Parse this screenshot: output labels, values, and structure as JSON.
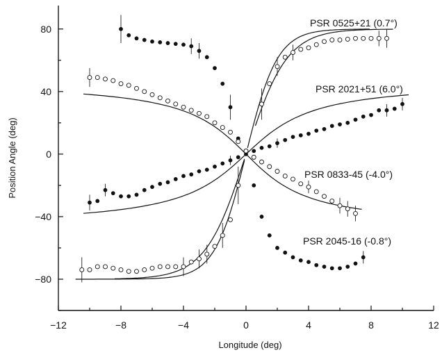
{
  "chart_data": {
    "type": "scatter",
    "xlabel": "Longitude (deg)",
    "ylabel": "Position Angle (deg)",
    "xlim": [
      -12,
      12
    ],
    "ylim": [
      -100,
      95
    ],
    "xticks": [
      -12,
      -8,
      -4,
      0,
      4,
      8,
      12
    ],
    "yticks": [
      -80,
      -40,
      0,
      40,
      80
    ],
    "grid": false,
    "series": [
      {
        "name": "PSR 0525+21 (0.7°)",
        "curve": "rvm",
        "params": {
          "a": 2.6,
          "amp": 80
        },
        "marker": "filled",
        "x": [
          -8,
          -7.5,
          -7,
          -6.5,
          -6,
          -5.5,
          -5,
          -4.5,
          -4,
          -3.5,
          -3,
          -2.5,
          -2,
          -1.5,
          -1,
          -0.5
        ],
        "y": [
          80,
          76,
          74,
          73,
          72,
          71.5,
          71,
          70.5,
          70,
          69,
          66,
          62,
          55,
          45,
          30,
          10
        ],
        "err_x": [
          -8,
          -3.5,
          -3,
          -1
        ],
        "err_h": [
          9,
          5,
          5,
          8
        ]
      },
      {
        "name": "",
        "curve": "rvm",
        "params": {
          "a": 2.6,
          "amp": 80
        },
        "marker": "open",
        "x": [
          1,
          1.5,
          2,
          2.5,
          3,
          3.5,
          4,
          4.5,
          5,
          5.5,
          6,
          6.5,
          7,
          7.5,
          8,
          8.5,
          9
        ],
        "y": [
          32,
          45,
          56,
          62,
          65,
          67,
          68,
          70,
          72,
          73,
          73,
          73.5,
          74,
          74,
          74,
          74,
          74
        ],
        "err_x": [
          1,
          2,
          3,
          8.5,
          9
        ],
        "err_h": [
          10,
          6,
          5,
          5,
          6
        ]
      },
      {
        "name": "PSR 2021+51 (6.0°)",
        "curve": "atan",
        "params": {
          "k": 3.2
        },
        "marker": "filled",
        "x": [
          -10,
          -9.5,
          -9,
          -8.5,
          -8,
          -7.5,
          -7,
          -6.5,
          -6,
          -5.5,
          -5,
          -4.5,
          -4,
          -3.5,
          -3,
          -2.5,
          -2,
          -1.5,
          -1,
          -0.5,
          0,
          0.5,
          1,
          1.5,
          2,
          2.5,
          3,
          3.5,
          4,
          4.5,
          5,
          5.5,
          6,
          6.5,
          7,
          7.5,
          8,
          8.5,
          9,
          9.5,
          10
        ],
        "y": [
          -31,
          -30,
          -23,
          -25,
          -27,
          -27,
          -26,
          -23,
          -21,
          -19,
          -18,
          -16,
          -14,
          -13,
          -11,
          -10,
          -8,
          -6,
          -4,
          -2,
          0,
          2,
          4,
          5,
          7,
          9,
          11,
          12,
          13,
          15,
          16,
          18,
          19,
          20,
          22,
          24,
          25,
          28,
          28,
          29,
          32
        ],
        "err_x": [
          -10,
          -9,
          -1,
          2,
          9,
          10
        ],
        "err_h": [
          5,
          4,
          3,
          3,
          4,
          4
        ]
      },
      {
        "name": "PSR 0833-45 (-4.0°)",
        "curve": "atan",
        "params": {
          "k": -3.0
        },
        "marker": "open",
        "x": [
          -10,
          -9.5,
          -9,
          -8.5,
          -8,
          -7.5,
          -7,
          -6.5,
          -6,
          -5.5,
          -5,
          -4.5,
          -4,
          -3.5,
          -3,
          -2.5,
          -2,
          -1.5,
          -1,
          -0.5,
          0,
          0.5,
          1,
          1.5,
          2,
          2.5,
          3,
          3.5,
          4,
          4.5,
          5,
          5.5,
          6,
          6.5,
          7
        ],
        "y": [
          49,
          49,
          48,
          47,
          45,
          44,
          42,
          40,
          38,
          36,
          34,
          32,
          30,
          28,
          26,
          24,
          20,
          17,
          14,
          8,
          2,
          -2,
          -5,
          -8,
          -11,
          -14,
          -16,
          -19,
          -21,
          -24,
          -27,
          -30,
          -33,
          -35,
          -38
        ],
        "err_x": [
          -10,
          4,
          6,
          6.5,
          7
        ],
        "err_h": [
          6,
          4,
          5,
          5,
          5
        ]
      },
      {
        "name": "PSR 2045-16 (-0.8°)",
        "curve": "rvm",
        "params": {
          "a": 2.0,
          "amp": 80
        },
        "marker": "filled",
        "x": [
          0.5,
          1,
          1.5,
          2,
          2.5,
          3,
          3.5,
          4,
          4.5,
          5,
          5.5,
          6,
          6.5,
          7,
          7.5
        ],
        "y": [
          -20,
          -40,
          -52,
          -60,
          -63,
          -66,
          -68,
          -69,
          -71,
          -72,
          -73,
          -73,
          -72,
          -70,
          -66
        ],
        "err_x": [
          7.5
        ],
        "err_h": [
          4
        ]
      },
      {
        "name": "",
        "curve": "rvm",
        "params": {
          "a": 2.0,
          "amp": 80
        },
        "marker": "open",
        "x": [
          -10.5,
          -10,
          -9.5,
          -9,
          -8.5,
          -8,
          -7.5,
          -7,
          -6.5,
          -6,
          -5.5,
          -5,
          -4.5,
          -4,
          -3.5,
          -3,
          -2.5,
          -2,
          -1.5,
          -1,
          -0.5
        ],
        "y": [
          -74,
          -74,
          -72,
          -72,
          -73,
          -74,
          -75,
          -75,
          -74,
          -73,
          -72,
          -72,
          -72,
          -72,
          -69,
          -67,
          -64,
          -59,
          -52,
          -42,
          -20
        ],
        "err_x": [
          -10.5,
          -4,
          -3,
          -2.5,
          -1.5,
          -0.5
        ],
        "err_h": [
          8,
          6,
          6,
          6,
          8,
          12
        ]
      }
    ]
  }
}
